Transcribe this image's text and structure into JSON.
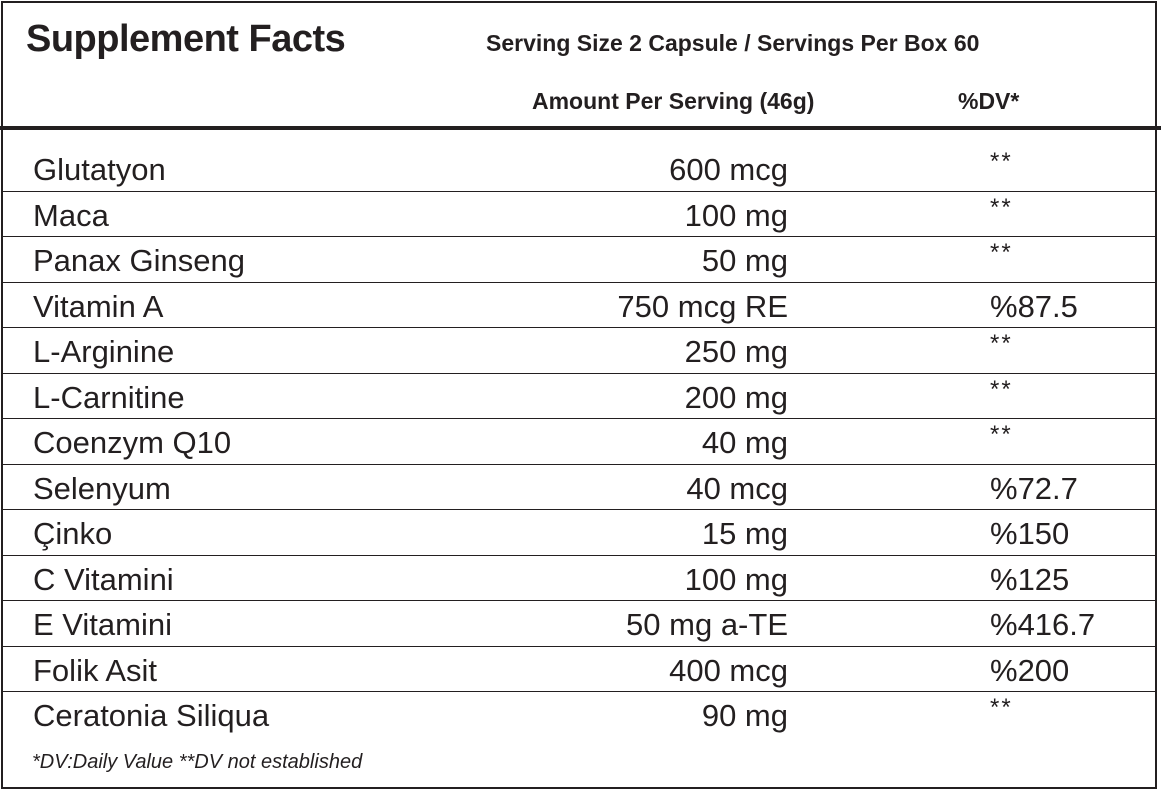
{
  "label": {
    "title": "Supplement Facts",
    "serving_info": "Serving Size 2 Capsule / Servings Per Box 60",
    "amount_header": "Amount Per Serving (46g)",
    "dv_header": "%DV*"
  },
  "rows": [
    {
      "name": "Glutatyon",
      "amount": "600 mcg",
      "dv": "**"
    },
    {
      "name": "Maca",
      "amount": "100 mg",
      "dv": "**"
    },
    {
      "name": "Panax Ginseng",
      "amount": "50 mg",
      "dv": "**"
    },
    {
      "name": "Vitamin A",
      "amount": "750 mcg RE",
      "dv": "%87.5"
    },
    {
      "name": "L-Arginine",
      "amount": "250 mg",
      "dv": "**"
    },
    {
      "name": "L-Carnitine",
      "amount": "200 mg",
      "dv": "**"
    },
    {
      "name": "Coenzym Q10",
      "amount": "40 mg",
      "dv": "**"
    },
    {
      "name": "Selenyum",
      "amount": "40 mcg",
      "dv": "%72.7"
    },
    {
      "name": "Çinko",
      "amount": "15 mg",
      "dv": "%150"
    },
    {
      "name": "C Vitamini",
      "amount": "100 mg",
      "dv": "%125"
    },
    {
      "name": "E Vitamini",
      "amount": "50 mg a-TE",
      "dv": "%416.7"
    },
    {
      "name": "Folik Asit",
      "amount": "400 mcg",
      "dv": "%200"
    },
    {
      "name": "Ceratonia Siliqua",
      "amount": "90 mg",
      "dv": "**"
    }
  ],
  "footnote": "*DV:Daily Value **DV not established"
}
